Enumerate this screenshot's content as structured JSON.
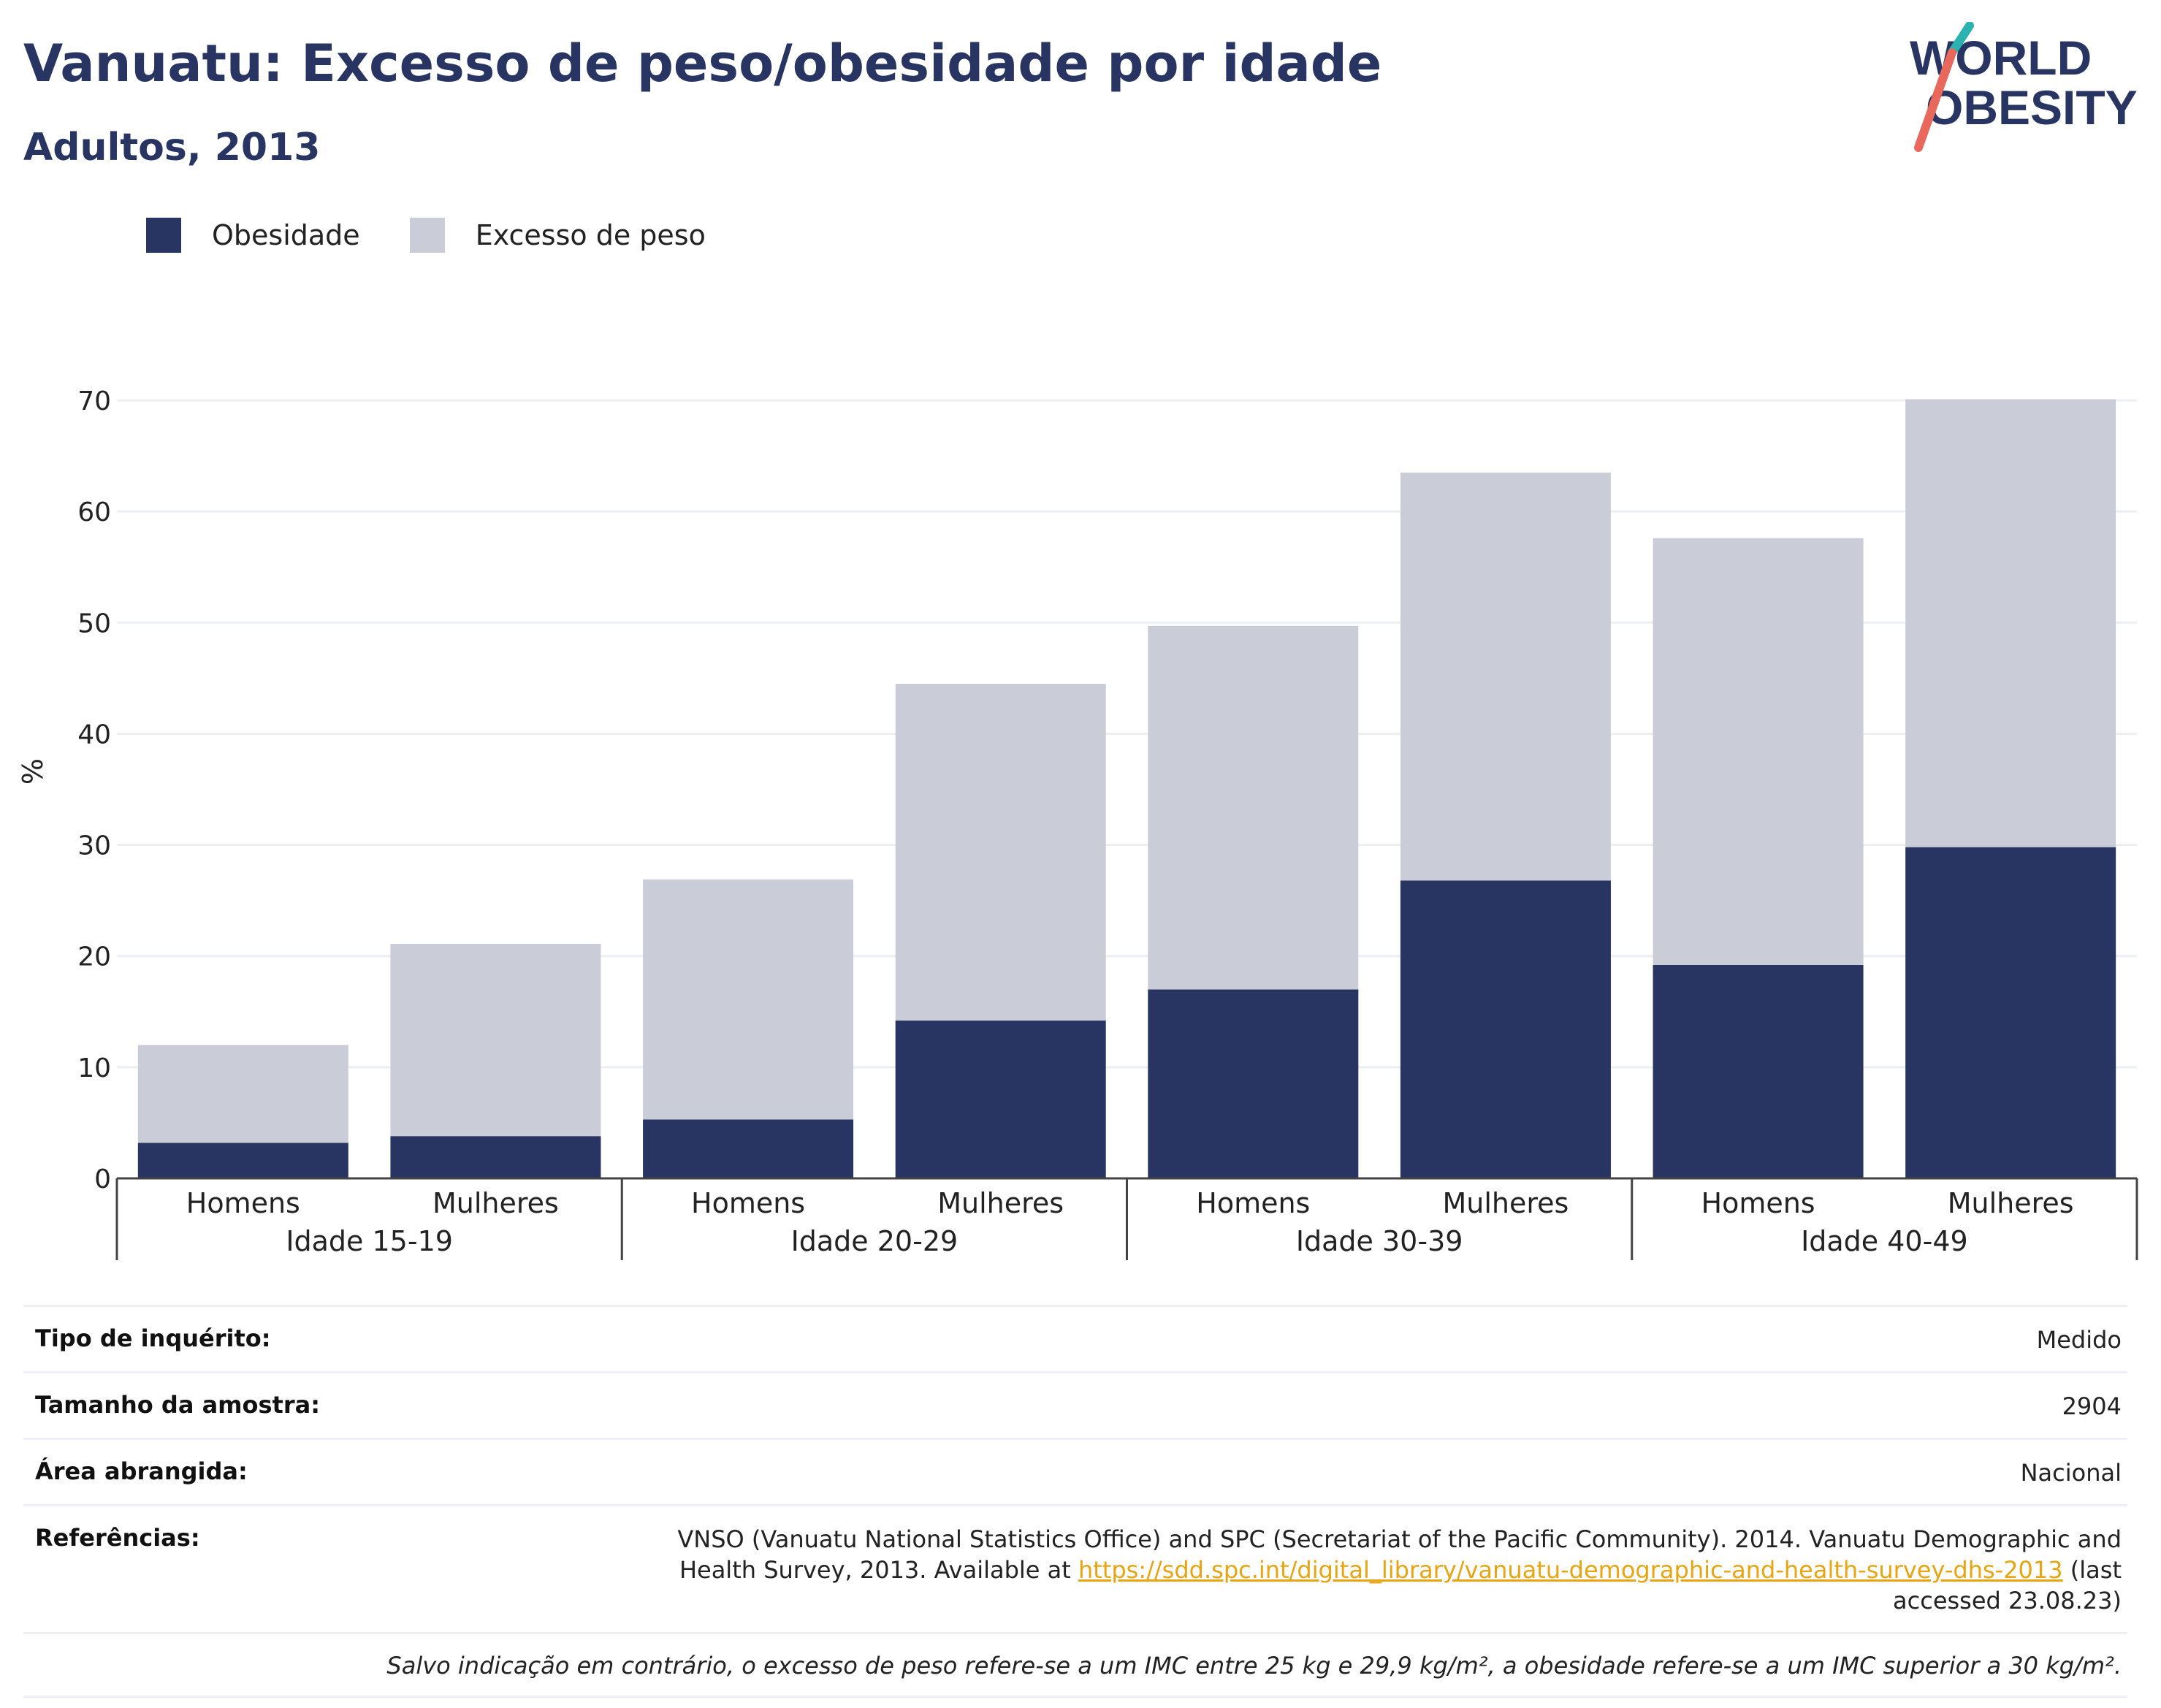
{
  "title": "Vanuatu: Excesso de peso/obesidade por idade",
  "subtitle": "Adultos, 2013",
  "logo": {
    "line1": "WORLD",
    "line2": "OBESITY"
  },
  "colors": {
    "obesity": "#283562",
    "overweight": "#cacdd8",
    "title": "#283562",
    "link": "#e8a411",
    "logo_teal": "#2bb3b1",
    "logo_coral": "#e8685c"
  },
  "chart_data": {
    "type": "bar",
    "stacked": true,
    "ylabel": "%",
    "ylim": [
      0,
      70
    ],
    "yticks": [
      0,
      10,
      20,
      30,
      40,
      50,
      60,
      70
    ],
    "groups": [
      "Idade 15-19",
      "Idade 20-29",
      "Idade 30-39",
      "Idade 40-49"
    ],
    "categories": [
      "Homens",
      "Mulheres",
      "Homens",
      "Mulheres",
      "Homens",
      "Mulheres",
      "Homens",
      "Mulheres"
    ],
    "series": [
      {
        "name": "Obesidade",
        "color": "#283562",
        "values": [
          3.2,
          3.8,
          5.3,
          14.2,
          17.0,
          26.8,
          19.2,
          29.8
        ]
      },
      {
        "name": "Excesso de peso",
        "color": "#cacdd8",
        "values": [
          8.8,
          17.3,
          21.6,
          30.3,
          32.7,
          36.7,
          38.4,
          40.3
        ]
      }
    ],
    "legend_position": "top-left",
    "grid": true
  },
  "info": {
    "survey_type_label": "Tipo de inquérito:",
    "survey_type_value": "Medido",
    "sample_size_label": "Tamanho da amostra:",
    "sample_size_value": "2904",
    "area_label": "Área abrangida:",
    "area_value": "Nacional",
    "references_label": "Referências:",
    "references_text_before": "VNSO (Vanuatu National Statistics Office) and SPC (Secretariat of the Pacific Community). 2014. Vanuatu Demographic and Health Survey, 2013. Available at ",
    "references_link": "https://sdd.spc.int/digital_library/vanuatu-demographic-and-health-survey-dhs-2013",
    "references_text_after": " (last accessed 23.08.23)",
    "note": "Salvo indicação em contrário, o excesso de peso refere-se a um IMC entre 25 kg e 29,9 kg/m², a obesidade refere-se a um IMC superior a 30 kg/m²."
  }
}
